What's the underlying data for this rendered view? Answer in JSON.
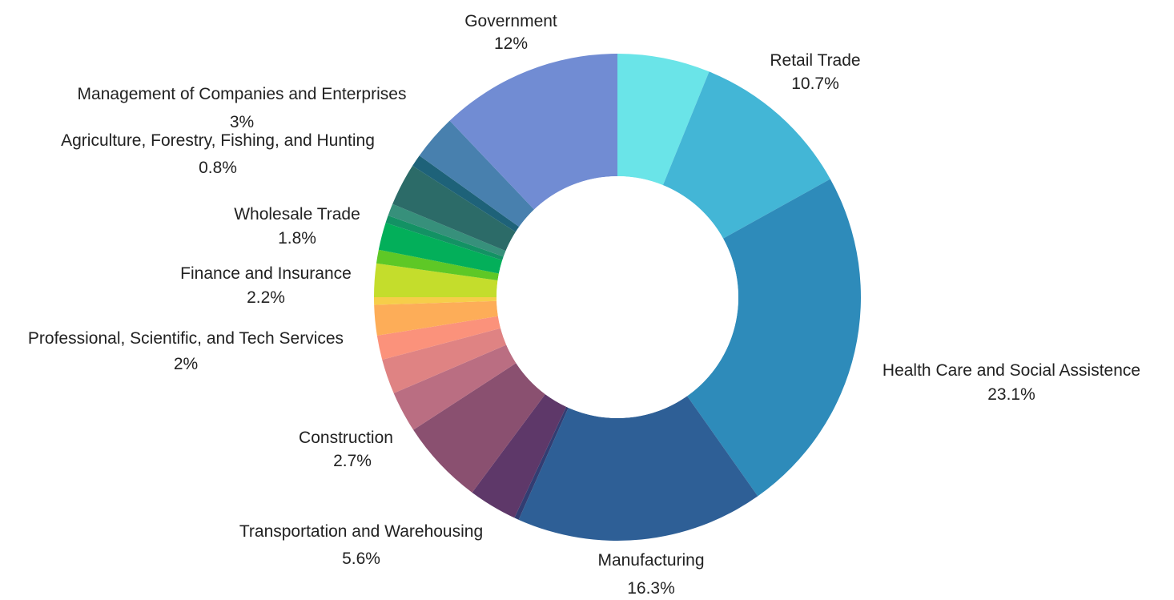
{
  "chart_data": {
    "type": "pie",
    "donut": true,
    "unit": "%",
    "labeled_slices": [
      {
        "name": "Government",
        "value": 12,
        "label": "12%"
      },
      {
        "name": "Retail Trade",
        "value": 10.7,
        "label": "10.7%"
      },
      {
        "name": "Health Care and Social Assistence",
        "value": 23.1,
        "label": "23.1%"
      },
      {
        "name": "Manufacturing",
        "value": 16.3,
        "label": "16.3%"
      },
      {
        "name": "Transportation and Warehousing",
        "value": 5.6,
        "label": "5.6%"
      },
      {
        "name": "Construction",
        "value": 2.7,
        "label": "2.7%"
      },
      {
        "name": "Professional, Scientific, and Tech Services",
        "value": 2,
        "label": "2%"
      },
      {
        "name": "Finance and Insurance",
        "value": 2.2,
        "label": "2.2%"
      },
      {
        "name": "Wholesale Trade",
        "value": 1.8,
        "label": "1.8%"
      },
      {
        "name": "Agriculture, Forestry, Fishing, and Hunting",
        "value": 0.8,
        "label": "0.8%"
      },
      {
        "name": "Management of Companies and Enterprises",
        "value": 3,
        "label": "3%"
      }
    ],
    "slices": [
      {
        "value": 6.1,
        "color": "#6ae4e8"
      },
      {
        "value": 10.7,
        "color": "#43b6d6"
      },
      {
        "value": 23.1,
        "color": "#2e8bba"
      },
      {
        "value": 16.3,
        "color": "#2e5f96"
      },
      {
        "value": 0.3,
        "color": "#323d72"
      },
      {
        "value": 3.2,
        "color": "#5e3869"
      },
      {
        "value": 5.6,
        "color": "#8a5070"
      },
      {
        "value": 2.7,
        "color": "#ba6e82"
      },
      {
        "value": 2.3,
        "color": "#df8383"
      },
      {
        "value": 1.6,
        "color": "#fb927b"
      },
      {
        "value": 2.0,
        "color": "#fdad58"
      },
      {
        "value": 0.5,
        "color": "#f6ce4a"
      },
      {
        "value": 2.2,
        "color": "#c4dd2c"
      },
      {
        "value": 0.9,
        "color": "#5ec826"
      },
      {
        "value": 1.8,
        "color": "#03af5a"
      },
      {
        "value": 0.5,
        "color": "#139264"
      },
      {
        "value": 0.8,
        "color": "#37907b"
      },
      {
        "value": 2.8,
        "color": "#2c6b68"
      },
      {
        "value": 0.8,
        "color": "#1e6279"
      },
      {
        "value": 3.0,
        "color": "#4880ae"
      },
      {
        "value": 12.0,
        "color": "#718cd3"
      }
    ]
  }
}
